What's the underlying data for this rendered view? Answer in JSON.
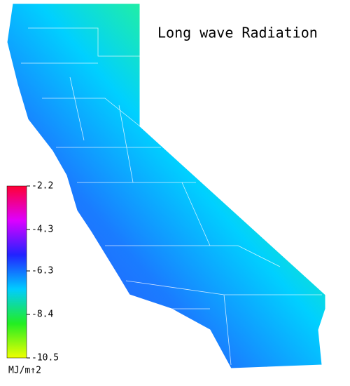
{
  "title": "Long wave Radiation",
  "colorbar": {
    "lim": [
      -2.2,
      -10.5
    ],
    "ticks": [
      -2.2,
      -4.3,
      -6.3,
      -8.4,
      -10.5
    ],
    "colors": [
      "#ff0033",
      "#dd00ff",
      "#2222ff",
      "#00ccff",
      "#22ee22",
      "#eeff00"
    ],
    "unit": "MJ/m↑2"
  }
}
